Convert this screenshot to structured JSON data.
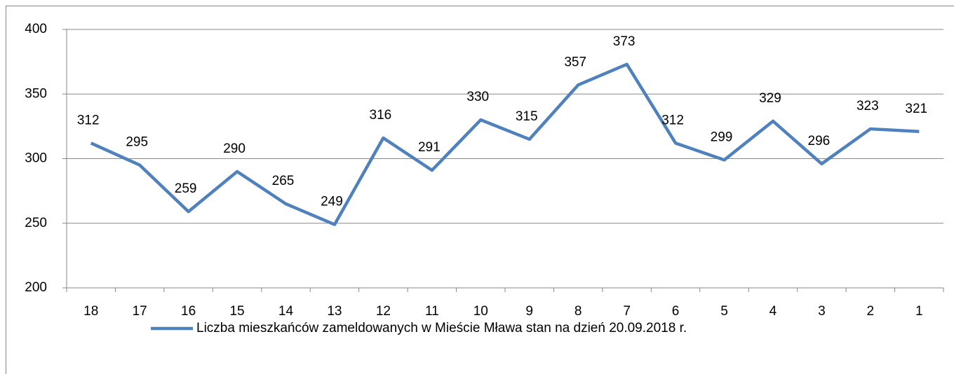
{
  "chart_data": {
    "type": "line",
    "categories": [
      "18",
      "17",
      "16",
      "15",
      "14",
      "13",
      "12",
      "11",
      "10",
      "9",
      "8",
      "7",
      "6",
      "5",
      "4",
      "3",
      "2",
      "1"
    ],
    "series": [
      {
        "name": "Liczba mieszkańców zameldowanych w Mieście Mława stan na dzień 20.09.2018 r.",
        "color": "#4f81bd",
        "values": [
          312,
          295,
          259,
          290,
          265,
          249,
          316,
          291,
          330,
          315,
          357,
          373,
          312,
          299,
          329,
          296,
          323,
          321
        ]
      }
    ],
    "ylim": [
      200,
      400
    ],
    "yticks": [
      200,
      250,
      300,
      350,
      400
    ],
    "grid": true,
    "legend": "bottom"
  }
}
